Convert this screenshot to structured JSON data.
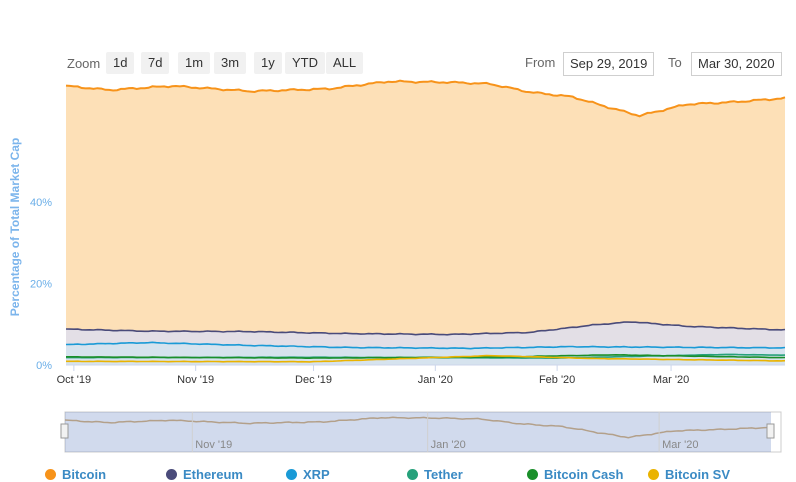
{
  "zoom": {
    "label": "Zoom",
    "buttons": [
      "1d",
      "7d",
      "1m",
      "3m",
      "1y",
      "YTD",
      "ALL"
    ]
  },
  "range": {
    "from_label": "From",
    "from_value": "Sep 29, 2019",
    "to_label": "To",
    "to_value": "Mar 30, 2020"
  },
  "chart_data": {
    "type": "area",
    "ylabel": "Percentage of Total Market Cap",
    "yticks": [
      "0%",
      "20%",
      "40%"
    ],
    "ytick_values": [
      0,
      20,
      40
    ],
    "ylim": [
      0,
      68
    ],
    "xticks": [
      "Oct '19",
      "Nov '19",
      "Dec '19",
      "Jan '20",
      "Feb '20",
      "Mar '20"
    ],
    "navigator_ticks": [
      "Nov '19",
      "Jan '20",
      "Mar '20"
    ],
    "x_start": "2019-09-29",
    "x_end": "2020-03-30",
    "grid": true,
    "legend_position": "bottom",
    "series": [
      {
        "name": "Bitcoin",
        "color": "#f7931a",
        "dates": [
          "2019-09-29",
          "2019-10-10",
          "2019-10-26",
          "2019-11-15",
          "2019-12-05",
          "2019-12-20",
          "2020-01-05",
          "2020-01-15",
          "2020-01-25",
          "2020-02-05",
          "2020-02-15",
          "2020-02-22",
          "2020-03-05",
          "2020-03-16",
          "2020-03-30"
        ],
        "values": [
          68.5,
          67.5,
          68.5,
          67.2,
          67.8,
          69.6,
          69.4,
          69.0,
          67.0,
          65.8,
          63.0,
          61.2,
          64.0,
          64.5,
          65.5
        ]
      },
      {
        "name": "Ethereum",
        "color": "#4a4b7a",
        "dates": [
          "2019-09-29",
          "2019-10-20",
          "2019-11-15",
          "2019-12-10",
          "2020-01-05",
          "2020-01-25",
          "2020-02-10",
          "2020-02-20",
          "2020-03-05",
          "2020-03-30"
        ],
        "values": [
          8.8,
          8.3,
          8.2,
          7.7,
          7.5,
          8.0,
          9.8,
          10.6,
          9.5,
          8.6
        ]
      },
      {
        "name": "XRP",
        "color": "#1a9ad6",
        "dates": [
          "2019-09-29",
          "2019-10-20",
          "2019-11-15",
          "2019-12-10",
          "2020-01-10",
          "2020-02-05",
          "2020-03-30"
        ],
        "values": [
          5.0,
          5.5,
          4.8,
          4.3,
          4.1,
          4.5,
          4.2
        ]
      },
      {
        "name": "Tether",
        "color": "#26a17b",
        "dates": [
          "2019-09-29",
          "2019-12-01",
          "2020-02-01",
          "2020-03-15",
          "2020-03-30"
        ],
        "values": [
          1.8,
          1.9,
          1.7,
          2.6,
          2.4
        ]
      },
      {
        "name": "Bitcoin Cash",
        "color": "#1a8f2a",
        "dates": [
          "2019-09-29",
          "2019-12-01",
          "2020-01-20",
          "2020-02-15",
          "2020-03-30"
        ],
        "values": [
          2.0,
          1.7,
          2.0,
          2.5,
          1.8
        ]
      },
      {
        "name": "Bitcoin SV",
        "color": "#eab300",
        "dates": [
          "2019-09-29",
          "2019-12-01",
          "2020-01-15",
          "2020-02-10",
          "2020-03-30"
        ],
        "values": [
          0.9,
          0.8,
          2.3,
          1.6,
          1.0
        ]
      }
    ]
  }
}
